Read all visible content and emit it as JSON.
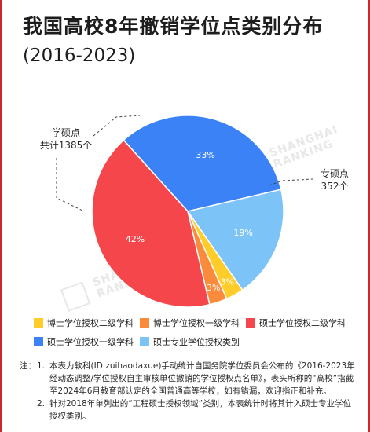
{
  "title": "我国高校8年撤销学位点类别分布",
  "subtitle": "(2016-2023)",
  "chart_data": {
    "type": "pie",
    "slices": [
      {
        "label": "学硕点",
        "value": 33,
        "label_text": "33%",
        "color": "#3b82f6"
      },
      {
        "label": "专硕点",
        "value": 19,
        "label_text": "19%",
        "color": "#7cc3f7"
      },
      {
        "label": "博士学位授权二级学科",
        "value": 3,
        "label_text": "3%",
        "color": "#ffcc29"
      },
      {
        "label": "博士学位授权一级学科",
        "value": 3,
        "label_text": "3%",
        "color": "#fb8b3c"
      },
      {
        "label": "硕士学位授权二级学科",
        "value": 42,
        "label_text": "42%",
        "color": "#f4464b"
      }
    ],
    "legend": [
      {
        "label": "博士学位授权二级学科",
        "color": "#ffcc29"
      },
      {
        "label": "博士学位授权一级学科",
        "color": "#fb8b3c"
      },
      {
        "label": "硕士学位授权二级学科",
        "color": "#f4464b"
      },
      {
        "label": "硕士学位授权一级学科",
        "color": "#3b82f6"
      },
      {
        "label": "硕士专业学位授权类别",
        "color": "#7cc3f7"
      }
    ],
    "legend_position": "bottom"
  },
  "callouts": {
    "academic": {
      "line1": "学硕点",
      "line2": "共计1385个"
    },
    "professional": {
      "line1": "专硕点",
      "line2": "352个"
    }
  },
  "notes": {
    "prefix": "注：",
    "items": [
      {
        "num": "1.",
        "text": "本表为软科(ID:zuihaodaxue)手动统计自国务院学位委员会公布的《2016-2023年经动态调整/学位授权自主审核单位撤销的学位授权点名单》，表头所称的“高校”指截至2024年6月教育部认定的全国普通高等学校，如有错漏，欢迎指正和补充。"
      },
      {
        "num": "2.",
        "text": "针对2018年单列出的“工程硕士授权领域”类别，本表统计时将其计入硕士专业学位授权类别。"
      }
    ]
  },
  "watermark": {
    "line1": "SHANGHAI",
    "line2": "RANKING"
  }
}
